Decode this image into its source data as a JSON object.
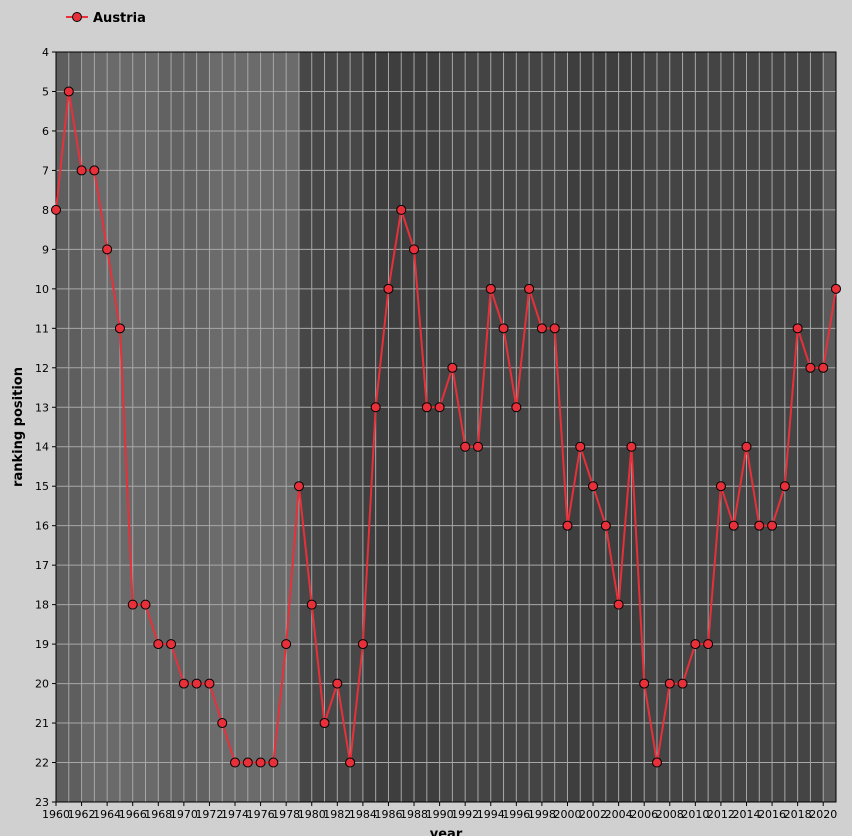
{
  "chart_data": {
    "type": "line",
    "xlabel": "year",
    "ylabel": "ranking position",
    "x": [
      1960,
      1961,
      1962,
      1963,
      1964,
      1965,
      1966,
      1967,
      1968,
      1969,
      1970,
      1971,
      1972,
      1973,
      1974,
      1975,
      1976,
      1977,
      1978,
      1979,
      1980,
      1981,
      1982,
      1983,
      1984,
      1985,
      1986,
      1987,
      1988,
      1989,
      1990,
      1991,
      1992,
      1993,
      1994,
      1995,
      1996,
      1997,
      1998,
      1999,
      2000,
      2001,
      2002,
      2003,
      2004,
      2005,
      2006,
      2007,
      2008,
      2009,
      2010,
      2011,
      2012,
      2013,
      2014,
      2015,
      2016,
      2017,
      2018,
      2019,
      2020,
      2021
    ],
    "series": [
      {
        "name": "Austria",
        "color": "#e8303a",
        "values": [
          8,
          5,
          7,
          7,
          9,
          11,
          18,
          18,
          19,
          19,
          20,
          20,
          20,
          21,
          22,
          22,
          22,
          22,
          19,
          15,
          18,
          21,
          20,
          22,
          19,
          13,
          10,
          8,
          9,
          13,
          13,
          12,
          14,
          14,
          10,
          11,
          13,
          10,
          11,
          11,
          16,
          14,
          15,
          16,
          18,
          14,
          20,
          22,
          20,
          20,
          19,
          19,
          15,
          16,
          14,
          16,
          16,
          15,
          11,
          12,
          12,
          10
        ]
      }
    ],
    "xlim": [
      1960,
      2021
    ],
    "xticks": [
      1960,
      1962,
      1964,
      1966,
      1968,
      1970,
      1972,
      1974,
      1976,
      1978,
      1980,
      1982,
      1984,
      1986,
      1988,
      1990,
      1992,
      1994,
      1996,
      1998,
      2000,
      2002,
      2004,
      2006,
      2008,
      2010,
      2012,
      2014,
      2016,
      2018,
      2020
    ],
    "ylim": [
      23,
      4
    ],
    "yticks": [
      4,
      5,
      6,
      7,
      8,
      9,
      10,
      11,
      12,
      13,
      14,
      15,
      16,
      17,
      18,
      19,
      20,
      21,
      22,
      23
    ],
    "y_inverted": true,
    "grid": true,
    "legend": "top-left",
    "bands": [
      {
        "from": 1960,
        "to": 1962,
        "color": "#5e5e5e"
      },
      {
        "from": 1962,
        "to": 1968,
        "color": "#6a6a6a"
      },
      {
        "from": 1968,
        "to": 1972,
        "color": "#626262"
      },
      {
        "from": 1972,
        "to": 1979,
        "color": "#6b6b6b"
      },
      {
        "from": 1979,
        "to": 1984,
        "color": "#474747"
      },
      {
        "from": 1984,
        "to": 1990,
        "color": "#3e3e3e"
      },
      {
        "from": 1990,
        "to": 2000,
        "color": "#444444"
      },
      {
        "from": 2000,
        "to": 2006,
        "color": "#3e3e3e"
      },
      {
        "from": 2006,
        "to": 2020,
        "color": "#444444"
      },
      {
        "from": 2020,
        "to": 2021,
        "color": "#5a5a5a"
      }
    ]
  }
}
